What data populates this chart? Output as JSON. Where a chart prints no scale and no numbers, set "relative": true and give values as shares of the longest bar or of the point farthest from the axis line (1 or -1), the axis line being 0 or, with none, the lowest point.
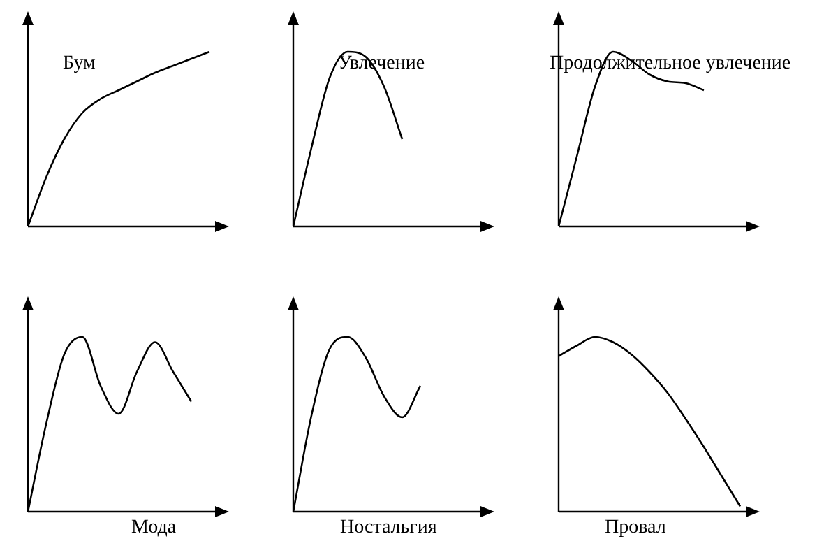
{
  "chart_data": [
    {
      "type": "line",
      "title": "Бум",
      "relative": true,
      "categories": [
        null,
        null,
        null,
        null,
        null,
        null,
        null,
        null,
        null,
        null,
        null
      ],
      "values": [
        0,
        0.28,
        0.5,
        0.65,
        0.73,
        0.78,
        0.83,
        0.88,
        0.92,
        0.96,
        1.0
      ],
      "color": "#000000",
      "marker": "none",
      "tick_labels": false
    },
    {
      "type": "line",
      "title": "Увлечение",
      "relative": true,
      "categories": [
        null,
        null,
        null,
        null,
        null,
        null,
        null,
        null,
        null,
        null,
        null
      ],
      "values": [
        0,
        0.45,
        0.85,
        1.0,
        0.97,
        0.8,
        0.5,
        null,
        null,
        null,
        null
      ],
      "color": "#000000",
      "marker": "none",
      "tick_labels": false
    },
    {
      "type": "line",
      "title": "Продолжительное увлечение",
      "relative": true,
      "categories": [
        null,
        null,
        null,
        null,
        null,
        null,
        null,
        null,
        null,
        null,
        null
      ],
      "values": [
        0,
        0.4,
        0.8,
        1.0,
        0.95,
        0.87,
        0.83,
        0.82,
        0.78,
        null,
        null
      ],
      "color": "#000000",
      "marker": "none",
      "tick_labels": false
    },
    {
      "type": "line",
      "title": "Мода",
      "relative": true,
      "categories": [
        null,
        null,
        null,
        null,
        null,
        null,
        null,
        null,
        null,
        null,
        null
      ],
      "values": [
        0,
        0.5,
        0.9,
        1.0,
        0.72,
        0.56,
        0.8,
        0.97,
        0.8,
        0.63,
        null
      ],
      "color": "#000000",
      "marker": "none",
      "tick_labels": false
    },
    {
      "type": "line",
      "title": "Ностальгия",
      "relative": true,
      "categories": [
        null,
        null,
        null,
        null,
        null,
        null,
        null,
        null,
        null,
        null,
        null
      ],
      "values": [
        0,
        0.55,
        0.93,
        1.0,
        0.88,
        0.66,
        0.54,
        0.72,
        null,
        null,
        null
      ],
      "color": "#000000",
      "marker": "none",
      "tick_labels": false
    },
    {
      "type": "line",
      "title": "Провал",
      "relative": true,
      "categories": [
        null,
        null,
        null,
        null,
        null,
        null,
        null,
        null,
        null,
        null,
        null
      ],
      "values": [
        0.89,
        0.95,
        1.0,
        0.97,
        0.9,
        0.8,
        0.68,
        0.53,
        0.37,
        0.2,
        0.03
      ],
      "color": "#000000",
      "marker": "none",
      "tick_labels": false
    }
  ]
}
